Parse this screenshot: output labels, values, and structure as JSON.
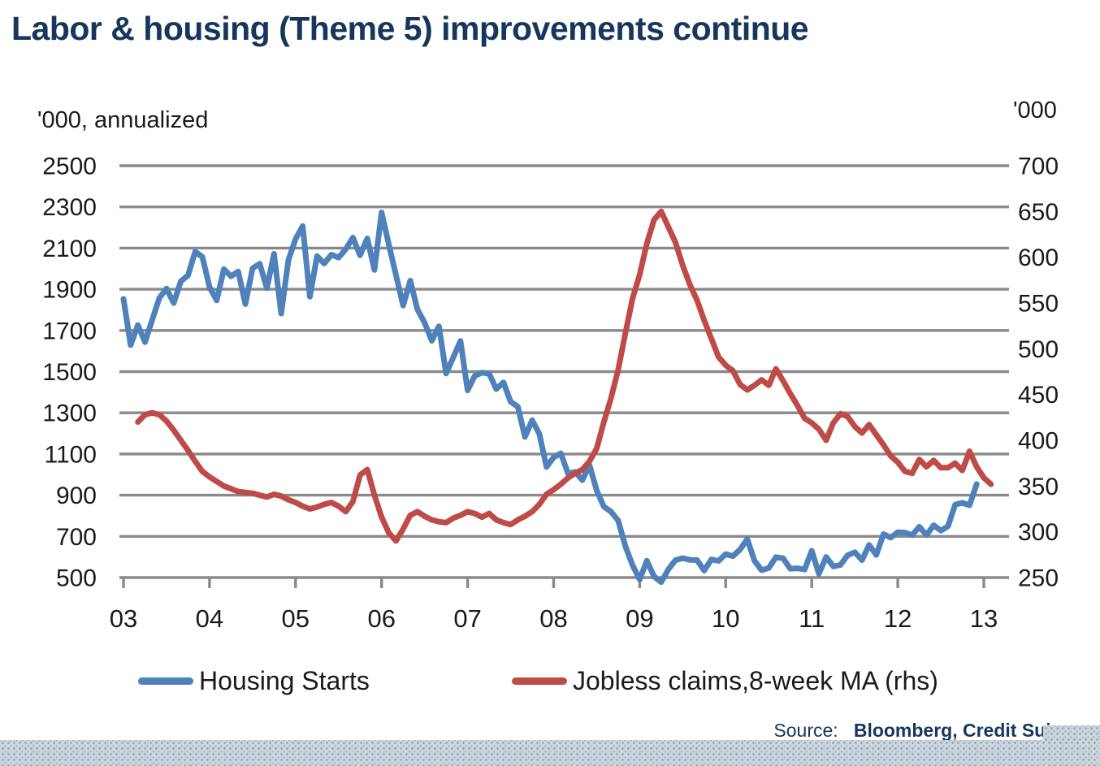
{
  "title": "Labor & housing (Theme 5) improvements continue",
  "source": {
    "prefix": "Source:",
    "detail": "Bloomberg, Credit Suisse"
  },
  "legend": {
    "items": [
      {
        "label": "Housing Starts",
        "color": "#4f81bb"
      },
      {
        "label": "Jobless claims,8-week MA (rhs)",
        "color": "#be4b48"
      }
    ]
  },
  "chart_data": {
    "type": "line",
    "title": "Labor & housing (Theme 5) improvements continue",
    "grid": true,
    "legend_position": "bottom",
    "colors": {
      "gridline": "#8a8a8a",
      "axis": "#8a8a8a",
      "tick_text": "#1a1a1a"
    },
    "x_axis": {
      "tick_labels": [
        "03",
        "04",
        "05",
        "06",
        "07",
        "08",
        "09",
        "10",
        "11",
        "12",
        "13"
      ],
      "unit": "year"
    },
    "left_axis": {
      "label": "'000, annualized",
      "ticks": [
        2500,
        2300,
        2100,
        1900,
        1700,
        1500,
        1300,
        1100,
        900,
        700,
        500
      ],
      "range": [
        500,
        2500
      ]
    },
    "right_axis": {
      "label": "'000",
      "ticks": [
        700,
        650,
        600,
        550,
        500,
        450,
        400,
        350,
        300,
        250
      ],
      "range": [
        250,
        700
      ]
    },
    "series": [
      {
        "name": "Housing Starts",
        "axis": "left",
        "color": "#4f81bb",
        "frequency": "monthly",
        "start": "2003-01",
        "values": [
          1853,
          1629,
          1726,
          1643,
          1751,
          1857,
          1903,
          1833,
          1939,
          1967,
          2083,
          2057,
          1911,
          1846,
          1998,
          1963,
          1986,
          1828,
          2002,
          2024,
          1905,
          2072,
          1782,
          2042,
          2144,
          2207,
          1864,
          2061,
          2025,
          2068,
          2054,
          2095,
          2151,
          2065,
          2147,
          1994,
          2273,
          2119,
          1969,
          1821,
          1942,
          1802,
          1737,
          1650,
          1720,
          1491,
          1570,
          1649,
          1409,
          1480,
          1495,
          1490,
          1415,
          1448,
          1354,
          1330,
          1183,
          1264,
          1197,
          1037,
          1084,
          1103,
          1005,
          1013,
          973,
          1046,
          923,
          844,
          820,
          777,
          652,
          560,
          490,
          582,
          505,
          478,
          540,
          585,
          594,
          586,
          585,
          534,
          588,
          581,
          614,
          604,
          636,
          687,
          583,
          536,
          546,
          599,
          594,
          543,
          545,
          539,
          630,
          518,
          600,
          554,
          561,
          608,
          623,
          585,
          658,
          610,
          711,
          694,
          720,
          718,
          706,
          747,
          706,
          754,
          728,
          749,
          854,
          863,
          851,
          954
        ]
      },
      {
        "name": "Jobless claims,8-week MA (rhs)",
        "axis": "right",
        "color": "#be4b48",
        "frequency": "monthly",
        "start": "2003-03",
        "values": [
          420,
          428,
          430,
          428,
          421,
          411,
          400,
          389,
          377,
          366,
          360,
          355,
          350,
          347,
          344,
          343,
          342,
          340,
          338,
          341,
          339,
          335,
          332,
          328,
          325,
          327,
          330,
          332,
          328,
          322,
          333,
          362,
          368,
          340,
          316,
          299,
          290,
          303,
          318,
          322,
          317,
          313,
          311,
          310,
          315,
          318,
          322,
          320,
          316,
          320,
          313,
          310,
          308,
          313,
          317,
          322,
          330,
          341,
          346,
          352,
          359,
          364,
          368,
          377,
          391,
          420,
          446,
          477,
          517,
          555,
          581,
          615,
          641,
          650,
          633,
          616,
          591,
          570,
          553,
          531,
          511,
          491,
          482,
          476,
          461,
          455,
          460,
          466,
          460,
          478,
          465,
          451,
          438,
          424,
          419,
          412,
          400,
          419,
          429,
          426,
          415,
          408,
          417,
          406,
          395,
          383,
          376,
          366,
          364,
          379,
          371,
          378,
          370,
          370,
          375,
          367,
          388,
          371,
          359,
          352
        ]
      }
    ]
  }
}
